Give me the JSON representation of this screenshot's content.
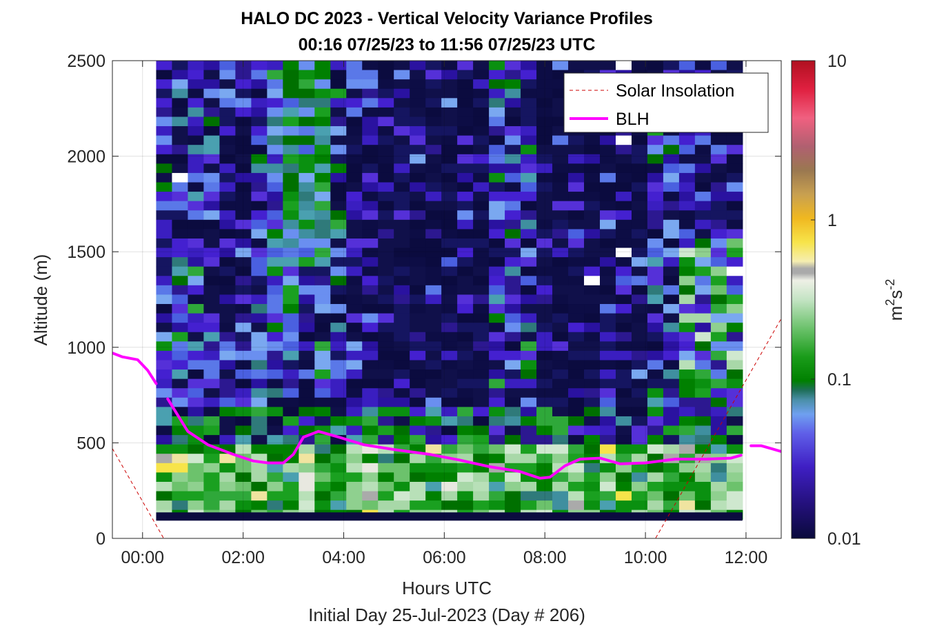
{
  "chart_data": {
    "type": "heatmap",
    "title": "HALO DC 2023 - Vertical Velocity Variance Profiles",
    "subtitle": "00:16 07/25/23 to 11:56 07/25/23  UTC",
    "xlabel": "Hours UTC",
    "footer": "Initial Day 25-Jul-2023 (Day # 206)",
    "ylabel": "Altitude (m)",
    "xlim": [
      -0.6,
      12.7
    ],
    "ylim": [
      0,
      2500
    ],
    "x_ticks": [
      0,
      2,
      4,
      6,
      8,
      10,
      12
    ],
    "x_tick_labels": [
      "00:00",
      "02:00",
      "04:00",
      "06:00",
      "08:00",
      "10:00",
      "12:00"
    ],
    "y_ticks": [
      0,
      500,
      1000,
      1500,
      2000,
      2500
    ],
    "y_tick_labels": [
      "0",
      "500",
      "1000",
      "1500",
      "2000",
      "2500"
    ],
    "grid": true,
    "colorbar": {
      "scale": "log",
      "range": [
        0.01,
        10
      ],
      "ticks": [
        0.01,
        0.1,
        1,
        10
      ],
      "tick_labels": [
        "0.01",
        "0.1",
        "1",
        "10"
      ],
      "label": "m",
      "label_sup1": "2",
      "label_mid": "s",
      "label_sup2": "-2"
    },
    "heatmap_x_range": [
      0.27,
      11.93
    ],
    "heatmap_altitude_range": [
      100,
      2500
    ],
    "series": [
      {
        "name": "Solar Insolation",
        "style": "dashed",
        "color": "#cc0000",
        "x": [
          -0.6,
          0.42,
          10.2,
          12.7
        ],
        "y": [
          470,
          0,
          0,
          1150
        ]
      },
      {
        "name": "BLH",
        "style": "solid",
        "color": "#ff00ff",
        "segments": [
          {
            "x": [
              -0.6,
              -0.4,
              -0.1,
              0.1,
              0.27
            ],
            "y": [
              970,
              950,
              935,
              880,
              810
            ]
          },
          {
            "x": [
              0.5,
              0.9,
              1.3,
              1.8,
              2.2,
              2.5,
              2.8,
              3.0,
              3.2,
              3.5,
              3.9,
              4.4,
              5.0,
              5.7,
              6.3,
              6.9,
              7.5,
              7.9,
              8.1,
              8.4,
              8.7,
              9.1,
              9.5,
              10.0,
              10.6,
              11.2,
              11.7,
              11.9
            ],
            "y": [
              730,
              560,
              490,
              440,
              405,
              395,
              395,
              440,
              530,
              560,
              530,
              490,
              465,
              440,
              410,
              375,
              350,
              315,
              320,
              380,
              415,
              420,
              390,
              395,
              415,
              415,
              420,
              435
            ]
          },
          {
            "x": [
              12.1,
              12.3,
              12.5,
              12.7
            ],
            "y": [
              485,
              485,
              470,
              455
            ]
          }
        ]
      }
    ],
    "legend": {
      "placement": "top-right",
      "entries": [
        "Solar Insolation",
        "BLH"
      ]
    }
  }
}
